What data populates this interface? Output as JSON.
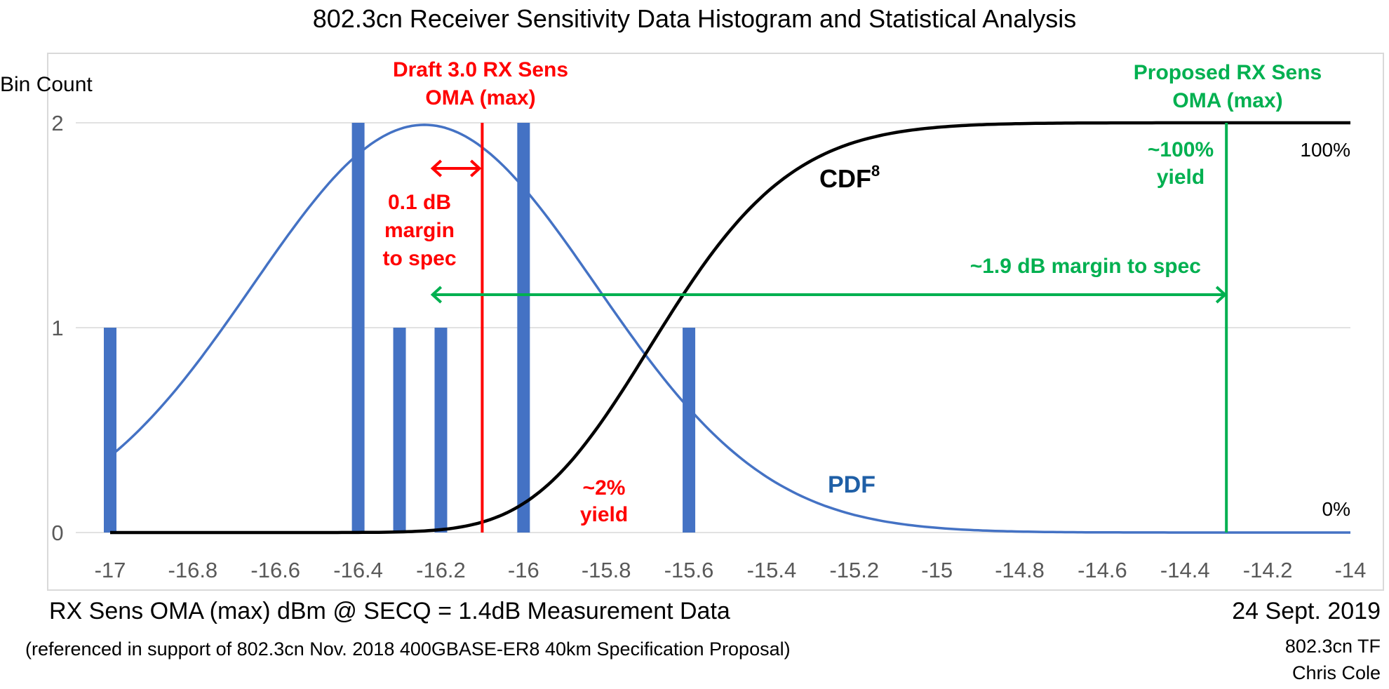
{
  "chart_data": {
    "type": "bar",
    "title": "802.3cn Receiver Sensitivity Data Histogram and Statistical Analysis",
    "xlabel": "RX Sens OMA (max) dBm @ SECQ = 1.4dB Measurement Data",
    "ylabel": "Bin Count",
    "xlim": [
      -17,
      -14
    ],
    "ylim": [
      0,
      2
    ],
    "grid": true,
    "x_ticks": [
      "-17",
      "-16.8",
      "-16.6",
      "-16.4",
      "-16.2",
      "-16",
      "-15.8",
      "-15.6",
      "-15.4",
      "-15.2",
      "-15",
      "-14.8",
      "-14.6",
      "-14.4",
      "-14.2",
      "-14"
    ],
    "x_tick_values": [
      -17,
      -16.8,
      -16.6,
      -16.4,
      -16.2,
      -16,
      -15.8,
      -15.6,
      -15.4,
      -15.2,
      -15,
      -14.8,
      -14.6,
      -14.4,
      -14.2,
      -14
    ],
    "y_ticks": [
      "0",
      "1",
      "2"
    ],
    "y_tick_values": [
      0,
      1,
      2
    ],
    "histogram": {
      "name": "Bin Count",
      "x": [
        -17.0,
        -16.4,
        -16.3,
        -16.2,
        -16.0,
        -15.6
      ],
      "values": [
        1,
        2,
        1,
        1,
        2,
        1
      ],
      "color": "#4472c4"
    },
    "series": [
      {
        "name": "PDF",
        "type": "line",
        "kind": "gaussian",
        "mean": -16.24,
        "sigma": 0.415,
        "peak": 1.99,
        "x_range": [
          -17,
          -14
        ],
        "color": "#4472c4"
      },
      {
        "name": "CDF8",
        "type": "line",
        "kind": "gaussian_cdf_power",
        "mean": -16.24,
        "sigma": 0.415,
        "power": 8,
        "scale": 2,
        "x_range": [
          -17,
          -14
        ],
        "color": "#000000"
      }
    ],
    "reference_lines": [
      {
        "name": "Draft 3.0 RX Sens OMA (max)",
        "x": -16.1,
        "color": "#ff0000"
      },
      {
        "name": "Proposed RX Sens OMA (max)",
        "x": -14.3,
        "color": "#00b050"
      }
    ],
    "annotations": {
      "red_title_line1": "Draft 3.0 RX Sens",
      "red_title_line2": "OMA (max)",
      "red_margin_line1": "0.1 dB",
      "red_margin_line2": "margin",
      "red_margin_line3": "to spec",
      "red_margin_arrow": {
        "from": -16.22,
        "to": -16.1
      },
      "red_yield_line1": "~2%",
      "red_yield_line2": "yield",
      "green_title_line1": "Proposed RX Sens",
      "green_title_line2": "OMA (max)",
      "green_yield_line1": "~100%",
      "green_yield_line2": "yield",
      "green_margin": "~1.9 dB margin to spec",
      "green_margin_arrow": {
        "from": -16.22,
        "to": -14.3
      },
      "cdf_label": "CDF",
      "cdf_superscript": "8",
      "pdf_label": "PDF",
      "pct_top": "100%",
      "pct_bottom": "0%"
    }
  },
  "footer": {
    "subtitle": "(referenced in support of 802.3cn Nov. 2018 400GBASE-ER8 40km Specification Proposal)",
    "date": "24 Sept. 2019",
    "group": "802.3cn TF",
    "author": "Chris Cole"
  }
}
